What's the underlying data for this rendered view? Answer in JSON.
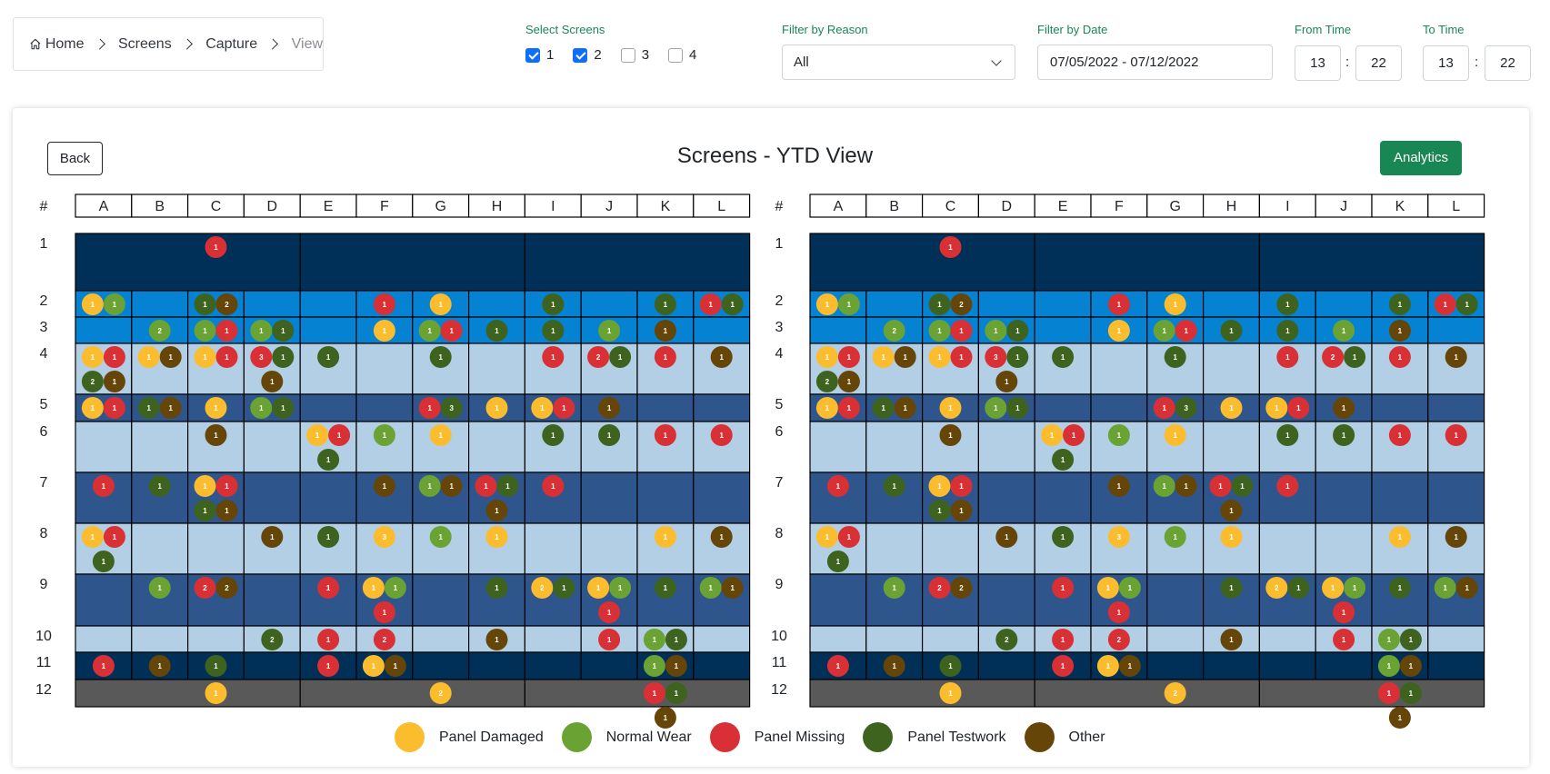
{
  "breadcrumb": {
    "items": [
      "Home",
      "Screens",
      "Capture",
      "View"
    ]
  },
  "filters": {
    "screens_label": "Select Screens",
    "screens": [
      {
        "label": "1",
        "checked": true
      },
      {
        "label": "2",
        "checked": true
      },
      {
        "label": "3",
        "checked": false
      },
      {
        "label": "4",
        "checked": false
      }
    ],
    "reason_label": "Filter by Reason",
    "reason_value": "All",
    "date_label": "Filter by Date",
    "date_value": "07/05/2022 - 07/12/2022",
    "from_label": "From Time",
    "from_hour": "13",
    "from_min": "22",
    "to_label": "To Time",
    "to_hour": "13",
    "to_min": "22",
    "colon": ":"
  },
  "buttons": {
    "back": "Back",
    "analytics": "Analytics"
  },
  "title": "Screens - YTD View",
  "colors": {
    "panel_damaged": "#fbbc2e",
    "normal_wear": "#6aa334",
    "panel_missing": "#d93035",
    "panel_testwork": "#3e631e",
    "other": "#654508"
  },
  "legend": [
    {
      "key": "panel_damaged",
      "label": "Panel Damaged"
    },
    {
      "key": "normal_wear",
      "label": "Normal Wear"
    },
    {
      "key": "panel_missing",
      "label": "Panel Missing"
    },
    {
      "key": "panel_testwork",
      "label": "Panel Testwork"
    },
    {
      "key": "other",
      "label": "Other"
    }
  ],
  "grid": {
    "hash": "#",
    "columns": [
      "A",
      "B",
      "C",
      "D",
      "E",
      "F",
      "G",
      "H",
      "I",
      "J",
      "K",
      "L"
    ],
    "rows": [
      "1",
      "2",
      "3",
      "4",
      "5",
      "6",
      "7",
      "8",
      "9",
      "10",
      "11",
      "12"
    ],
    "row_colors": [
      "#003057",
      "#0582d2",
      "#0582d2",
      "#b2cfe6",
      "#2e568c",
      "#b2cfe6",
      "#2e568c",
      "#b2cfe6",
      "#2e568c",
      "#b2cfe6",
      "#003057",
      "#595959"
    ],
    "cells": [
      {
        "r": 1,
        "c": "C",
        "m": [
          "P1"
        ]
      },
      {
        "r": 2,
        "c": "A",
        "m": [
          "D1",
          "W1"
        ]
      },
      {
        "r": 2,
        "c": "C",
        "m": [
          "T1",
          "O2"
        ]
      },
      {
        "r": 2,
        "c": "F",
        "m": [
          "P1"
        ]
      },
      {
        "r": 2,
        "c": "G",
        "m": [
          "D1"
        ]
      },
      {
        "r": 2,
        "c": "I",
        "m": [
          "T1"
        ]
      },
      {
        "r": 2,
        "c": "K",
        "m": [
          "T1"
        ]
      },
      {
        "r": 2,
        "c": "L",
        "m": [
          "P1",
          "T1"
        ]
      },
      {
        "r": 3,
        "c": "B",
        "m": [
          "W2"
        ]
      },
      {
        "r": 3,
        "c": "C",
        "m": [
          "W1",
          "P1"
        ]
      },
      {
        "r": 3,
        "c": "D",
        "m": [
          "W1",
          "T1"
        ]
      },
      {
        "r": 3,
        "c": "F",
        "m": [
          "D1"
        ]
      },
      {
        "r": 3,
        "c": "G",
        "m": [
          "W1",
          "P1"
        ]
      },
      {
        "r": 3,
        "c": "H",
        "m": [
          "T1"
        ]
      },
      {
        "r": 3,
        "c": "I",
        "m": [
          "T1"
        ]
      },
      {
        "r": 3,
        "c": "J",
        "m": [
          "W1"
        ]
      },
      {
        "r": 3,
        "c": "K",
        "m": [
          "O1"
        ]
      },
      {
        "r": 4,
        "c": "A",
        "m": [
          "D1",
          "P1",
          "T2",
          "O1"
        ]
      },
      {
        "r": 4,
        "c": "B",
        "m": [
          "D1",
          "O1"
        ]
      },
      {
        "r": 4,
        "c": "C",
        "m": [
          "D1",
          "P1"
        ]
      },
      {
        "r": 4,
        "c": "D",
        "m": [
          "P3",
          "T1",
          "O1"
        ]
      },
      {
        "r": 4,
        "c": "E",
        "m": [
          "T1"
        ]
      },
      {
        "r": 4,
        "c": "G",
        "m": [
          "T1"
        ]
      },
      {
        "r": 4,
        "c": "I",
        "m": [
          "P1"
        ]
      },
      {
        "r": 4,
        "c": "J",
        "m": [
          "P2",
          "T1"
        ]
      },
      {
        "r": 4,
        "c": "K",
        "m": [
          "P1"
        ]
      },
      {
        "r": 4,
        "c": "L",
        "m": [
          "O1"
        ]
      },
      {
        "r": 5,
        "c": "A",
        "m": [
          "D1",
          "P1"
        ]
      },
      {
        "r": 5,
        "c": "B",
        "m": [
          "T1",
          "O1"
        ]
      },
      {
        "r": 5,
        "c": "C",
        "m": [
          "D1"
        ]
      },
      {
        "r": 5,
        "c": "D",
        "m": [
          "W1",
          "T1"
        ]
      },
      {
        "r": 5,
        "c": "G",
        "m": [
          "P1",
          "T3"
        ]
      },
      {
        "r": 5,
        "c": "H",
        "m": [
          "D1"
        ]
      },
      {
        "r": 5,
        "c": "I",
        "m": [
          "D1",
          "P1"
        ]
      },
      {
        "r": 5,
        "c": "J",
        "m": [
          "O1"
        ]
      },
      {
        "r": 6,
        "c": "C",
        "m": [
          "O1"
        ]
      },
      {
        "r": 6,
        "c": "E",
        "m": [
          "D1",
          "P1",
          "T1"
        ]
      },
      {
        "r": 6,
        "c": "F",
        "m": [
          "W1"
        ]
      },
      {
        "r": 6,
        "c": "G",
        "m": [
          "D1"
        ]
      },
      {
        "r": 6,
        "c": "I",
        "m": [
          "T1"
        ]
      },
      {
        "r": 6,
        "c": "J",
        "m": [
          "T1"
        ]
      },
      {
        "r": 6,
        "c": "K",
        "m": [
          "P1"
        ]
      },
      {
        "r": 6,
        "c": "L",
        "m": [
          "P1"
        ]
      },
      {
        "r": 7,
        "c": "A",
        "m": [
          "P1"
        ]
      },
      {
        "r": 7,
        "c": "B",
        "m": [
          "T1"
        ]
      },
      {
        "r": 7,
        "c": "C",
        "m": [
          "D1",
          "P1",
          "T1",
          "O1"
        ]
      },
      {
        "r": 7,
        "c": "F",
        "m": [
          "O1"
        ]
      },
      {
        "r": 7,
        "c": "G",
        "m": [
          "W1",
          "O1"
        ]
      },
      {
        "r": 7,
        "c": "H",
        "m": [
          "P1",
          "T1",
          "O1"
        ]
      },
      {
        "r": 7,
        "c": "I",
        "m": [
          "P1"
        ]
      },
      {
        "r": 8,
        "c": "A",
        "m": [
          "D1",
          "P1",
          "T1"
        ]
      },
      {
        "r": 8,
        "c": "D",
        "m": [
          "O1"
        ]
      },
      {
        "r": 8,
        "c": "E",
        "m": [
          "T1"
        ]
      },
      {
        "r": 8,
        "c": "F",
        "m": [
          "D3"
        ]
      },
      {
        "r": 8,
        "c": "G",
        "m": [
          "W1"
        ]
      },
      {
        "r": 8,
        "c": "H",
        "m": [
          "D1"
        ]
      },
      {
        "r": 8,
        "c": "K",
        "m": [
          "D1"
        ]
      },
      {
        "r": 8,
        "c": "L",
        "m": [
          "O1"
        ]
      },
      {
        "r": 9,
        "c": "B",
        "m": [
          "W1"
        ]
      },
      {
        "r": 9,
        "c": "C",
        "m": [
          "P2",
          "O2"
        ]
      },
      {
        "r": 9,
        "c": "E",
        "m": [
          "P1"
        ]
      },
      {
        "r": 9,
        "c": "F",
        "m": [
          "D1",
          "W1",
          "P1"
        ]
      },
      {
        "r": 9,
        "c": "H",
        "m": [
          "T1"
        ]
      },
      {
        "r": 9,
        "c": "I",
        "m": [
          "D2",
          "T1"
        ]
      },
      {
        "r": 9,
        "c": "J",
        "m": [
          "D1",
          "W1",
          "P1"
        ]
      },
      {
        "r": 9,
        "c": "K",
        "m": [
          "T1"
        ]
      },
      {
        "r": 9,
        "c": "L",
        "m": [
          "W1",
          "O1"
        ]
      },
      {
        "r": 10,
        "c": "D",
        "m": [
          "T2"
        ]
      },
      {
        "r": 10,
        "c": "E",
        "m": [
          "P1"
        ]
      },
      {
        "r": 10,
        "c": "F",
        "m": [
          "P2"
        ]
      },
      {
        "r": 10,
        "c": "H",
        "m": [
          "O1"
        ]
      },
      {
        "r": 10,
        "c": "J",
        "m": [
          "P1"
        ]
      },
      {
        "r": 10,
        "c": "K",
        "m": [
          "W1",
          "T1"
        ]
      },
      {
        "r": 11,
        "c": "A",
        "m": [
          "P1"
        ]
      },
      {
        "r": 11,
        "c": "B",
        "m": [
          "O1"
        ]
      },
      {
        "r": 11,
        "c": "C",
        "m": [
          "T1"
        ]
      },
      {
        "r": 11,
        "c": "E",
        "m": [
          "P1"
        ]
      },
      {
        "r": 11,
        "c": "F",
        "m": [
          "D1",
          "O1"
        ]
      },
      {
        "r": 11,
        "c": "K",
        "m": [
          "W1",
          "O1"
        ]
      },
      {
        "r": 12,
        "c": "C",
        "m": [
          "D1"
        ]
      },
      {
        "r": 12,
        "c": "G",
        "m": [
          "D2"
        ]
      },
      {
        "r": 12,
        "c": "K",
        "m": [
          "P1",
          "T1",
          "O1"
        ]
      }
    ]
  }
}
